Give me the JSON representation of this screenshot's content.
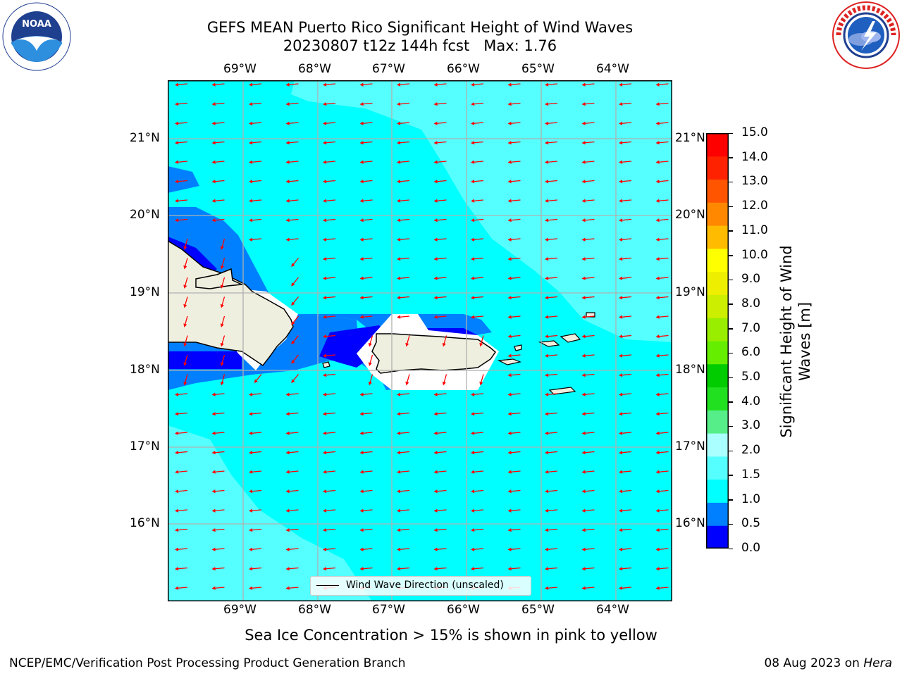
{
  "title": {
    "line1": "GEFS MEAN Puerto Rico Significant Height of Wind Waves",
    "line2": "20230807 t12z 144h fcst   Max: 1.76"
  },
  "logos": {
    "noaa_text": "NOAA",
    "noaa_ring": "NATIONAL OCEANIC AND ATMOSPHERIC ADMINISTRATION · U.S. DEPARTMENT OF COMMERCE",
    "nws_ring": "NATIONAL WEATHER SERVICE"
  },
  "axes": {
    "lon_labels": [
      "69°W",
      "68°W",
      "67°W",
      "66°W",
      "65°W",
      "64°W"
    ],
    "lat_labels": [
      "21°N",
      "20°N",
      "19°N",
      "18°N",
      "17°N",
      "16°N"
    ]
  },
  "legend": {
    "label": "Wind Wave Direction (unscaled)"
  },
  "colorbar": {
    "title_line1": "Significant Height of Wind",
    "title_line2": "Waves [m]",
    "labels": [
      "15.0",
      "14.0",
      "13.0",
      "12.0",
      "11.0",
      "10.0",
      "9.0",
      "8.0",
      "7.0",
      "6.0",
      "5.0",
      "4.0",
      "3.0",
      "2.0",
      "1.5",
      "1.0",
      "0.5",
      "0.0"
    ],
    "colors_bottom_to_top": [
      "#0000ff",
      "#0080ff",
      "#00ffff",
      "#55ffff",
      "#aaffff",
      "#55ee88",
      "#20e020",
      "#00cc00",
      "#66ee00",
      "#99ee00",
      "#ccee00",
      "#eeee00",
      "#ffff00",
      "#ffbb00",
      "#ff8800",
      "#ff5500",
      "#ff2200",
      "#ff0000"
    ]
  },
  "colors": {
    "cyan": "#00ffff",
    "light_cyan": "#55ffff",
    "mid_blue": "#0080ff",
    "dark_blue": "#0000ff",
    "land": "#efefdf",
    "arrow": "#ff0000",
    "grid": "#b0b0b0"
  },
  "notes": {
    "sea_ice": "Sea Ice Concentration > 15% is shown in pink to yellow"
  },
  "footer": {
    "left": "NCEP/EMC/Verification Post Processing Product Generation Branch",
    "date": "08 Aug 2023 on",
    "machine": "Hera"
  }
}
